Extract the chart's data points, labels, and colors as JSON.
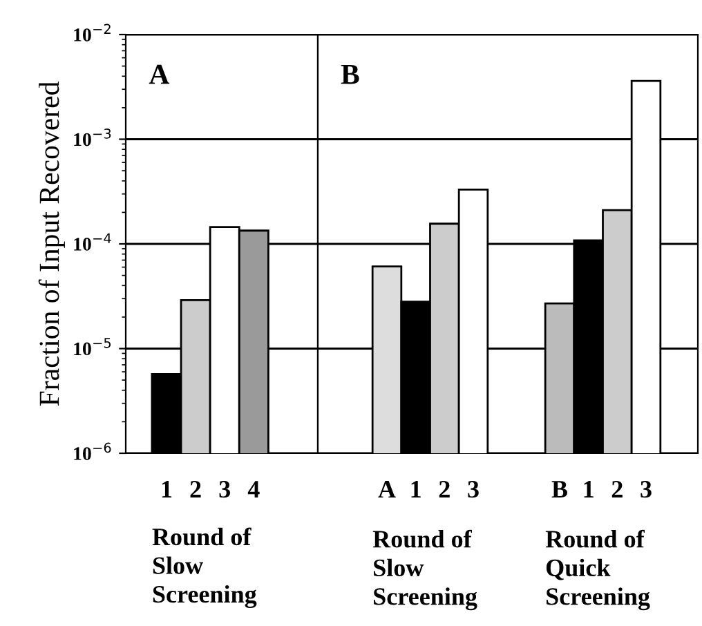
{
  "chart_data": [
    {
      "type": "bar",
      "title": "A",
      "ylabel": "Fraction of Input Recovered",
      "xlabel": "Round of\nSlow\nScreening",
      "categories": [
        "1",
        "2",
        "3",
        "4"
      ],
      "values": [
        5.7e-06,
        2.9e-05,
        0.000145,
        0.000134
      ],
      "colors": [
        "#000000",
        "#cccccc",
        "#ffffff",
        "#9a9a9a"
      ],
      "log": "y",
      "ylim": [
        1e-06,
        0.01
      ],
      "yticks": [
        {
          "value": 1e-06,
          "label": "10$^{−6}$"
        },
        {
          "value": 1e-05,
          "label": "10$^{−5}$"
        },
        {
          "value": 0.0001,
          "label": "10$^{−4}$"
        },
        {
          "value": 0.001,
          "label": "10$^{−3}$"
        },
        {
          "value": 0.01,
          "label": "10$^{−2}$"
        }
      ],
      "grid": "y"
    },
    {
      "type": "bar",
      "title": "B",
      "categories": [
        "A",
        "1",
        "2",
        "3",
        null,
        null,
        "B",
        "1",
        "2",
        "3"
      ],
      "values": [
        6.1e-05,
        2.8e-05,
        0.000156,
        0.00033,
        null,
        null,
        2.7e-05,
        0.000108,
        0.00021,
        0.0036
      ],
      "colors": [
        "#dddddd",
        "#000000",
        "#cccccc",
        "#ffffff",
        null,
        null,
        "#bbbbbb",
        "#000000",
        "#cccccc",
        "#ffffff"
      ],
      "annotations": [
        "Round of\nSlow\nScreening",
        "Round of\nQuick\nScreening"
      ],
      "log": "y",
      "ylim": [
        1e-06,
        0.01
      ],
      "grid": "y",
      "tick_labels": "x"
    }
  ]
}
